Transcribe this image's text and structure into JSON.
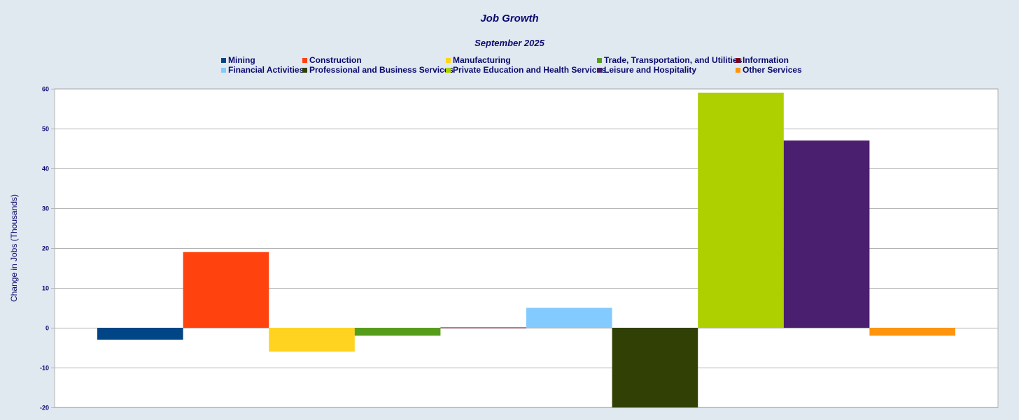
{
  "chart_data": {
    "type": "bar",
    "title": "Job Growth",
    "subtitle": "September 2025",
    "ylabel": "Change in Jobs (Thousands)",
    "xlabel": "",
    "ylim": [
      -20,
      60
    ],
    "yticks": [
      60,
      50,
      40,
      30,
      20,
      10,
      0,
      -10,
      -20
    ],
    "grid": true,
    "legend_position": "top",
    "series": [
      {
        "name": "Mining",
        "value": -3,
        "color": "#004586"
      },
      {
        "name": "Construction",
        "value": 19,
        "color": "#ff420e"
      },
      {
        "name": "Manufacturing",
        "value": -6,
        "color": "#ffd320"
      },
      {
        "name": "Trade, Transportation, and Utilities",
        "value": -2,
        "color": "#579d1c"
      },
      {
        "name": "Information",
        "value": 0,
        "color": "#7e0021"
      },
      {
        "name": "Financial Activities",
        "value": 5,
        "color": "#83caff"
      },
      {
        "name": "Professional and Business Services",
        "value": -20,
        "color": "#314004"
      },
      {
        "name": "Private Education and Health Services",
        "value": 59,
        "color": "#aecf00"
      },
      {
        "name": "Leisure and Hospitality",
        "value": 47,
        "color": "#4b1f6f"
      },
      {
        "name": "Other Services",
        "value": -2,
        "color": "#ff950e"
      }
    ]
  }
}
